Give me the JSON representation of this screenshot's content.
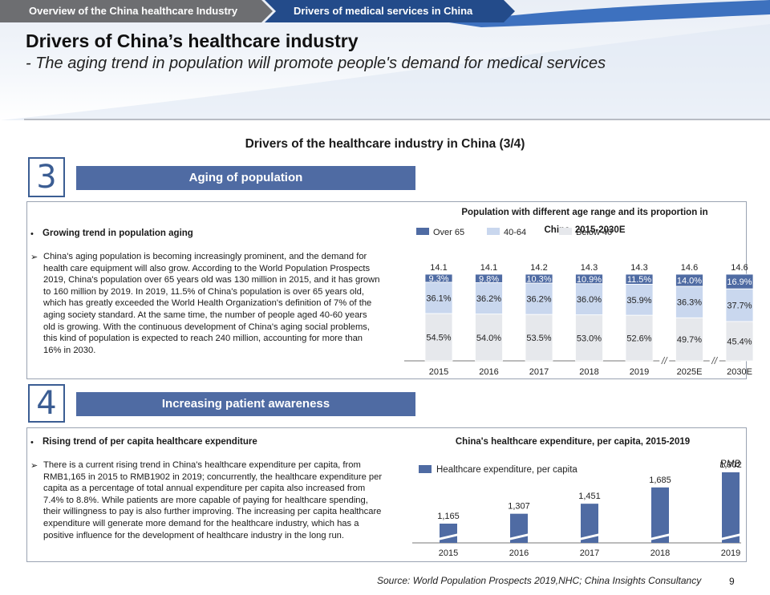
{
  "breadcrumb": {
    "item1": "Overview of the China healthcare Industry",
    "item2": "Drivers of medical services in China"
  },
  "page": {
    "title": "Drivers of China’s healthcare industry",
    "subtitle": "- The aging trend in population will promote people's demand for medical services",
    "section_title": "Drivers of the healthcare industry in China (3/4)",
    "source": "Source: World Population Prospects 2019,NHC; China Insights Consultancy",
    "page_number": "9"
  },
  "section3": {
    "number": "3",
    "banner": "Aging of population",
    "bullet_heading": "Growing trend in population aging",
    "body": "China's aging population is becoming increasingly prominent, and the demand for health care equipment will also grow. According to the World Population Prospects 2019, China's population over 65 years old was 130 million in 2015, and it has grown to 160 million by 2019. In 2019, 11.5% of China's population is over 65 years old, which has greatly exceeded the World Health Organization's definition of 7% of the aging society standard. At the same time, the number of people aged 40-60 years old is growing. With the continuous development of China's aging social problems, this kind of population is expected to reach 240 million, accounting for more than 16% in 2030.",
    "chart_title_line1": "Population with different age range and its proportion in",
    "chart_title_line2": "China, 2015-2030E"
  },
  "section4": {
    "number": "4",
    "banner": "Increasing patient awareness",
    "bullet_heading": "Rising trend of per capita healthcare expenditure",
    "body": "There is a current rising trend in China's healthcare expenditure per capita, from RMB1,165 in 2015 to RMB1902 in 2019; concurrently, the healthcare expenditure per capita as a percentage of total annual expenditure per capita also increased from 7.4% to 8.8%. While patients are more capable of paying for healthcare spending, their willingness to pay is also further improving. The increasing per capita healthcare expenditure will generate more demand for the healthcare industry, which has a positive influence for the development of healthcare industry in the long run.",
    "chart_title": "China's healthcare expenditure, per capita, 2015-2019"
  },
  "chart_data": [
    {
      "type": "bar",
      "stacked": true,
      "normalized": true,
      "title": "Population with different age range and its proportion in China, 2015-2030E",
      "categories": [
        "2015",
        "2016",
        "2017",
        "2018",
        "2019",
        "2025E",
        "2030E"
      ],
      "totals": [
        "14.1",
        "14.1",
        "14.2",
        "14.3",
        "14.3",
        "14.6",
        "14.6"
      ],
      "series": [
        {
          "name": "Over 65",
          "color": "#4f6ba3",
          "values": [
            9.3,
            9.8,
            10.3,
            10.9,
            11.5,
            14.0,
            16.9
          ],
          "labels": [
            "9.3%",
            "9.8%",
            "10.3%",
            "10.9%",
            "11.5%",
            "14.0%",
            "16.9%"
          ]
        },
        {
          "name": "40-64",
          "color": "#c9d7ee",
          "values": [
            36.1,
            36.2,
            36.2,
            36.0,
            35.9,
            36.3,
            37.7
          ],
          "labels": [
            "36.1%",
            "36.2%",
            "36.2%",
            "36.0%",
            "35.9%",
            "36.3%",
            "37.7%"
          ]
        },
        {
          "name": "Below 40",
          "color": "#e6e8ec",
          "values": [
            54.5,
            54.0,
            53.5,
            53.0,
            52.6,
            49.7,
            45.4
          ],
          "labels": [
            "54.5%",
            "54.0%",
            "53.5%",
            "53.0%",
            "52.6%",
            "49.7%",
            "45.4%"
          ]
        }
      ],
      "axis_break_marks": [
        "//",
        "//"
      ],
      "legend_position": "top-left"
    },
    {
      "type": "bar",
      "title": "China’s healthcare expenditure, per capita, 2015-2019",
      "unit": "RMB",
      "legend": "Healthcare expenditure, per capita",
      "color": "#4f6ba3",
      "categories": [
        "2015",
        "2016",
        "2017",
        "2018",
        "2019"
      ],
      "values": [
        1165,
        1307,
        1451,
        1685,
        1902
      ],
      "labels": [
        "1,165",
        "1,307",
        "1,451",
        "1,685",
        "1,902"
      ],
      "axis_break": true,
      "legend_position": "top-left"
    }
  ]
}
